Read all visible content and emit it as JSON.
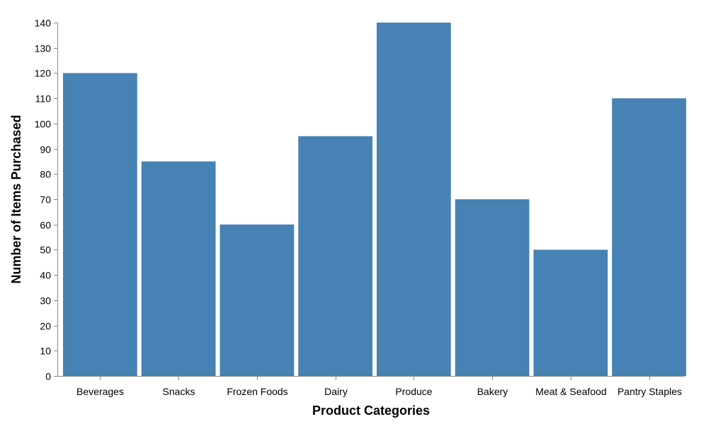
{
  "chart_data": {
    "type": "bar",
    "categories": [
      "Beverages",
      "Snacks",
      "Frozen Foods",
      "Dairy",
      "Produce",
      "Bakery",
      "Meat & Seafood",
      "Pantry Staples"
    ],
    "values": [
      120,
      85,
      60,
      95,
      140,
      70,
      50,
      110
    ],
    "title": "",
    "xlabel": "Product Categories",
    "ylabel": "Number of Items Purchased",
    "ylim": [
      0,
      140
    ],
    "yticks": [
      0,
      10,
      20,
      30,
      40,
      50,
      60,
      70,
      80,
      90,
      100,
      110,
      120,
      130,
      140
    ],
    "grid": false,
    "legend": "none",
    "bar_color": "#4682b4",
    "axis_color": "#888888"
  }
}
